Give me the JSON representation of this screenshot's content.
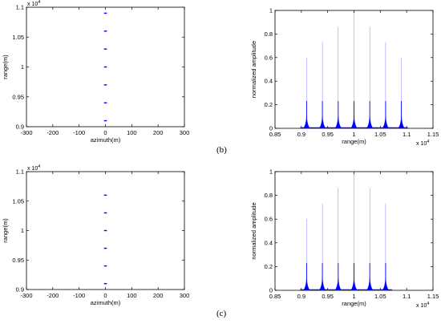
{
  "panel_labels": [
    "(b)",
    "(c)"
  ],
  "colors": {
    "signal": "#0000ff",
    "axes": "#000000",
    "background": "#ffffff"
  },
  "chart_data": [
    {
      "type": "scatter",
      "xlabel": "azimuth(m)",
      "ylabel": "range(m)",
      "xlim": [
        -300,
        300
      ],
      "ylim": [
        9000,
        11000
      ],
      "xticks": [
        "-300",
        "-200",
        "-100",
        "0",
        "100",
        "200",
        "300"
      ],
      "yticks": [
        "0.9",
        "0.95",
        "1",
        "1.05",
        "1.1"
      ],
      "y_exponent_label": "x 10",
      "y_exponent": "4",
      "points": [
        {
          "x": 0,
          "y": 10900
        },
        {
          "x": 0,
          "y": 10600
        },
        {
          "x": 0,
          "y": 10300
        },
        {
          "x": 0,
          "y": 10000
        },
        {
          "x": 0,
          "y": 9700
        },
        {
          "x": 0,
          "y": 9400
        },
        {
          "x": 0,
          "y": 9100
        }
      ],
      "grid": false
    },
    {
      "type": "line",
      "xlabel": "range(m)",
      "ylabel": "normalized amplitude",
      "xlim": [
        8500,
        11500
      ],
      "ylim": [
        0,
        1
      ],
      "xticks": [
        "0.85",
        "0.9",
        "0.95",
        "1",
        "1.05",
        "1.1",
        "1.15"
      ],
      "yticks": [
        "0",
        "0.2",
        "0.4",
        "0.6",
        "0.8",
        "1"
      ],
      "x_exponent_label": "x 10",
      "x_exponent": "4",
      "peaks": [
        {
          "x": 9100,
          "y": 0.6
        },
        {
          "x": 9400,
          "y": 0.73
        },
        {
          "x": 9700,
          "y": 0.86
        },
        {
          "x": 10000,
          "y": 1.0
        },
        {
          "x": 10300,
          "y": 0.86
        },
        {
          "x": 10600,
          "y": 0.73
        },
        {
          "x": 10900,
          "y": 0.6
        }
      ],
      "grid": false
    },
    {
      "type": "scatter",
      "xlabel": "azimuth(m)",
      "ylabel": "range(m)",
      "xlim": [
        -300,
        300
      ],
      "ylim": [
        9000,
        11000
      ],
      "xticks": [
        "-300",
        "-200",
        "-100",
        "0",
        "100",
        "200",
        "300"
      ],
      "yticks": [
        "0.9",
        "0.95",
        "1",
        "1.05",
        "1.1"
      ],
      "y_exponent_label": "x 10",
      "y_exponent": "4",
      "points": [
        {
          "x": 0,
          "y": 10600
        },
        {
          "x": 0,
          "y": 10300
        },
        {
          "x": 0,
          "y": 10000
        },
        {
          "x": 0,
          "y": 9700
        },
        {
          "x": 0,
          "y": 9400
        },
        {
          "x": 0,
          "y": 9100
        }
      ],
      "grid": false
    },
    {
      "type": "line",
      "xlabel": "range(m)",
      "ylabel": "normalized amplitude",
      "xlim": [
        8500,
        11500
      ],
      "ylim": [
        0,
        1
      ],
      "xticks": [
        "0.85",
        "0.9",
        "0.95",
        "1",
        "1.05",
        "1.1",
        "1.15"
      ],
      "yticks": [
        "0",
        "0.2",
        "0.4",
        "0.6",
        "0.8",
        "1"
      ],
      "x_exponent_label": "x 10",
      "x_exponent": "4",
      "peaks": [
        {
          "x": 9100,
          "y": 0.6
        },
        {
          "x": 9400,
          "y": 0.73
        },
        {
          "x": 9700,
          "y": 0.86
        },
        {
          "x": 10000,
          "y": 1.0
        },
        {
          "x": 10300,
          "y": 0.86
        },
        {
          "x": 10600,
          "y": 0.73
        }
      ],
      "grid": false
    }
  ]
}
